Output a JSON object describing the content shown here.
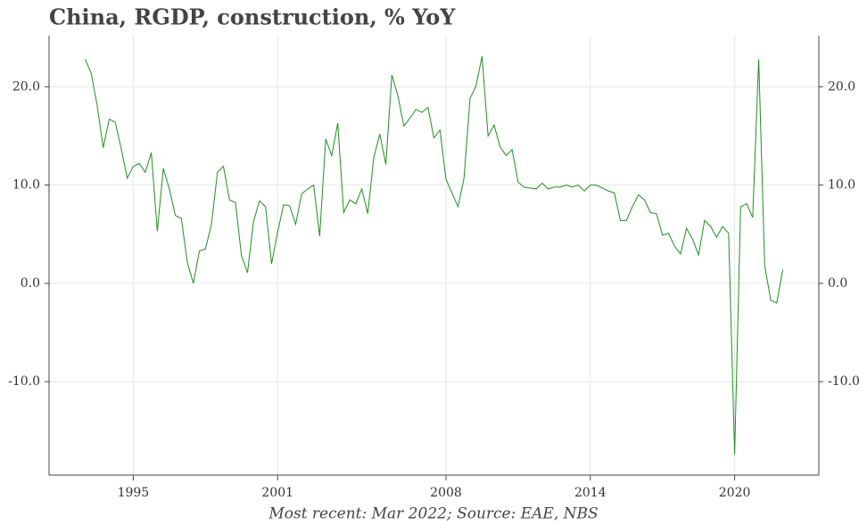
{
  "chart_data": {
    "type": "line",
    "title": "China, RGDP, construction, % YoY",
    "caption": "Most recent: Mar 2022; Source: EAE, NBS",
    "x": [
      1993,
      1993.25,
      1993.5,
      1993.75,
      1994,
      1994.25,
      1994.5,
      1994.75,
      1995,
      1995.25,
      1995.5,
      1995.75,
      1996,
      1996.25,
      1996.5,
      1996.75,
      1997,
      1997.25,
      1997.5,
      1997.75,
      1998,
      1998.25,
      1998.5,
      1998.75,
      1999,
      1999.25,
      1999.5,
      1999.75,
      2000,
      2000.25,
      2000.5,
      2000.75,
      2001,
      2001.25,
      2001.5,
      2001.75,
      2002,
      2002.25,
      2002.5,
      2002.75,
      2003,
      2003.25,
      2003.5,
      2003.75,
      2004,
      2004.25,
      2004.5,
      2004.75,
      2005,
      2005.25,
      2005.5,
      2005.75,
      2006,
      2006.25,
      2006.5,
      2006.75,
      2007,
      2007.25,
      2007.5,
      2007.75,
      2008,
      2008.25,
      2008.5,
      2008.75,
      2009,
      2009.25,
      2009.5,
      2009.75,
      2010,
      2010.25,
      2010.5,
      2010.75,
      2011,
      2011.25,
      2011.5,
      2011.75,
      2012,
      2012.25,
      2012.5,
      2012.75,
      2013,
      2013.25,
      2013.5,
      2013.75,
      2014,
      2014.25,
      2014.5,
      2014.75,
      2015,
      2015.25,
      2015.5,
      2015.75,
      2016,
      2016.25,
      2016.5,
      2016.75,
      2017,
      2017.25,
      2017.5,
      2017.75,
      2018,
      2018.25,
      2018.5,
      2018.75,
      2019,
      2019.25,
      2019.5,
      2019.75,
      2020,
      2020.25,
      2020.5,
      2020.75,
      2021,
      2021.25,
      2021.5,
      2021.75,
      2022
    ],
    "values": [
      22.8,
      21.4,
      18.1,
      13.8,
      16.7,
      16.4,
      13.7,
      10.7,
      11.9,
      12.2,
      11.3,
      13.3,
      5.3,
      11.7,
      9.6,
      6.9,
      6.6,
      2.1,
      0.0,
      3.3,
      3.5,
      6.0,
      11.3,
      11.9,
      8.5,
      8.2,
      2.8,
      1.1,
      6.3,
      8.4,
      7.8,
      2.0,
      5.2,
      8.0,
      7.9,
      6.0,
      9.1,
      9.6,
      10.0,
      4.8,
      14.7,
      13.0,
      16.3,
      7.2,
      8.5,
      8.1,
      9.6,
      7.1,
      12.8,
      15.2,
      12.1,
      21.2,
      19.1,
      16.0,
      16.8,
      17.7,
      17.4,
      17.9,
      14.8,
      15.6,
      10.6,
      9.2,
      7.8,
      10.7,
      18.8,
      20.1,
      23.1,
      15.0,
      16.1,
      13.9,
      13.0,
      13.6,
      10.3,
      9.8,
      9.7,
      9.6,
      10.2,
      9.6,
      9.8,
      9.8,
      10.0,
      9.8,
      10.0,
      9.4,
      10.0,
      10.0,
      9.7,
      9.4,
      9.2,
      6.4,
      6.4,
      7.8,
      9.0,
      8.5,
      7.2,
      7.1,
      4.9,
      5.1,
      3.8,
      3.0,
      5.6,
      4.5,
      2.9,
      6.4,
      5.8,
      4.7,
      5.8,
      5.1,
      -17.4,
      7.8,
      8.1,
      6.7,
      22.8,
      1.8,
      -1.7,
      -2.0,
      1.4
    ],
    "color": "#1f8f1f",
    "xlim": [
      1991.5,
      2023.5
    ],
    "xticks": [
      1995,
      2001,
      2008,
      2014,
      2020
    ],
    "ylim": [
      -19.5,
      25.2
    ],
    "yticks": [
      {
        "value": -10,
        "label": "-10.0"
      },
      {
        "value": 0,
        "label": "0.0"
      },
      {
        "value": 10,
        "label": "10.0"
      },
      {
        "value": 20,
        "label": "20.0"
      }
    ],
    "grid": true
  }
}
